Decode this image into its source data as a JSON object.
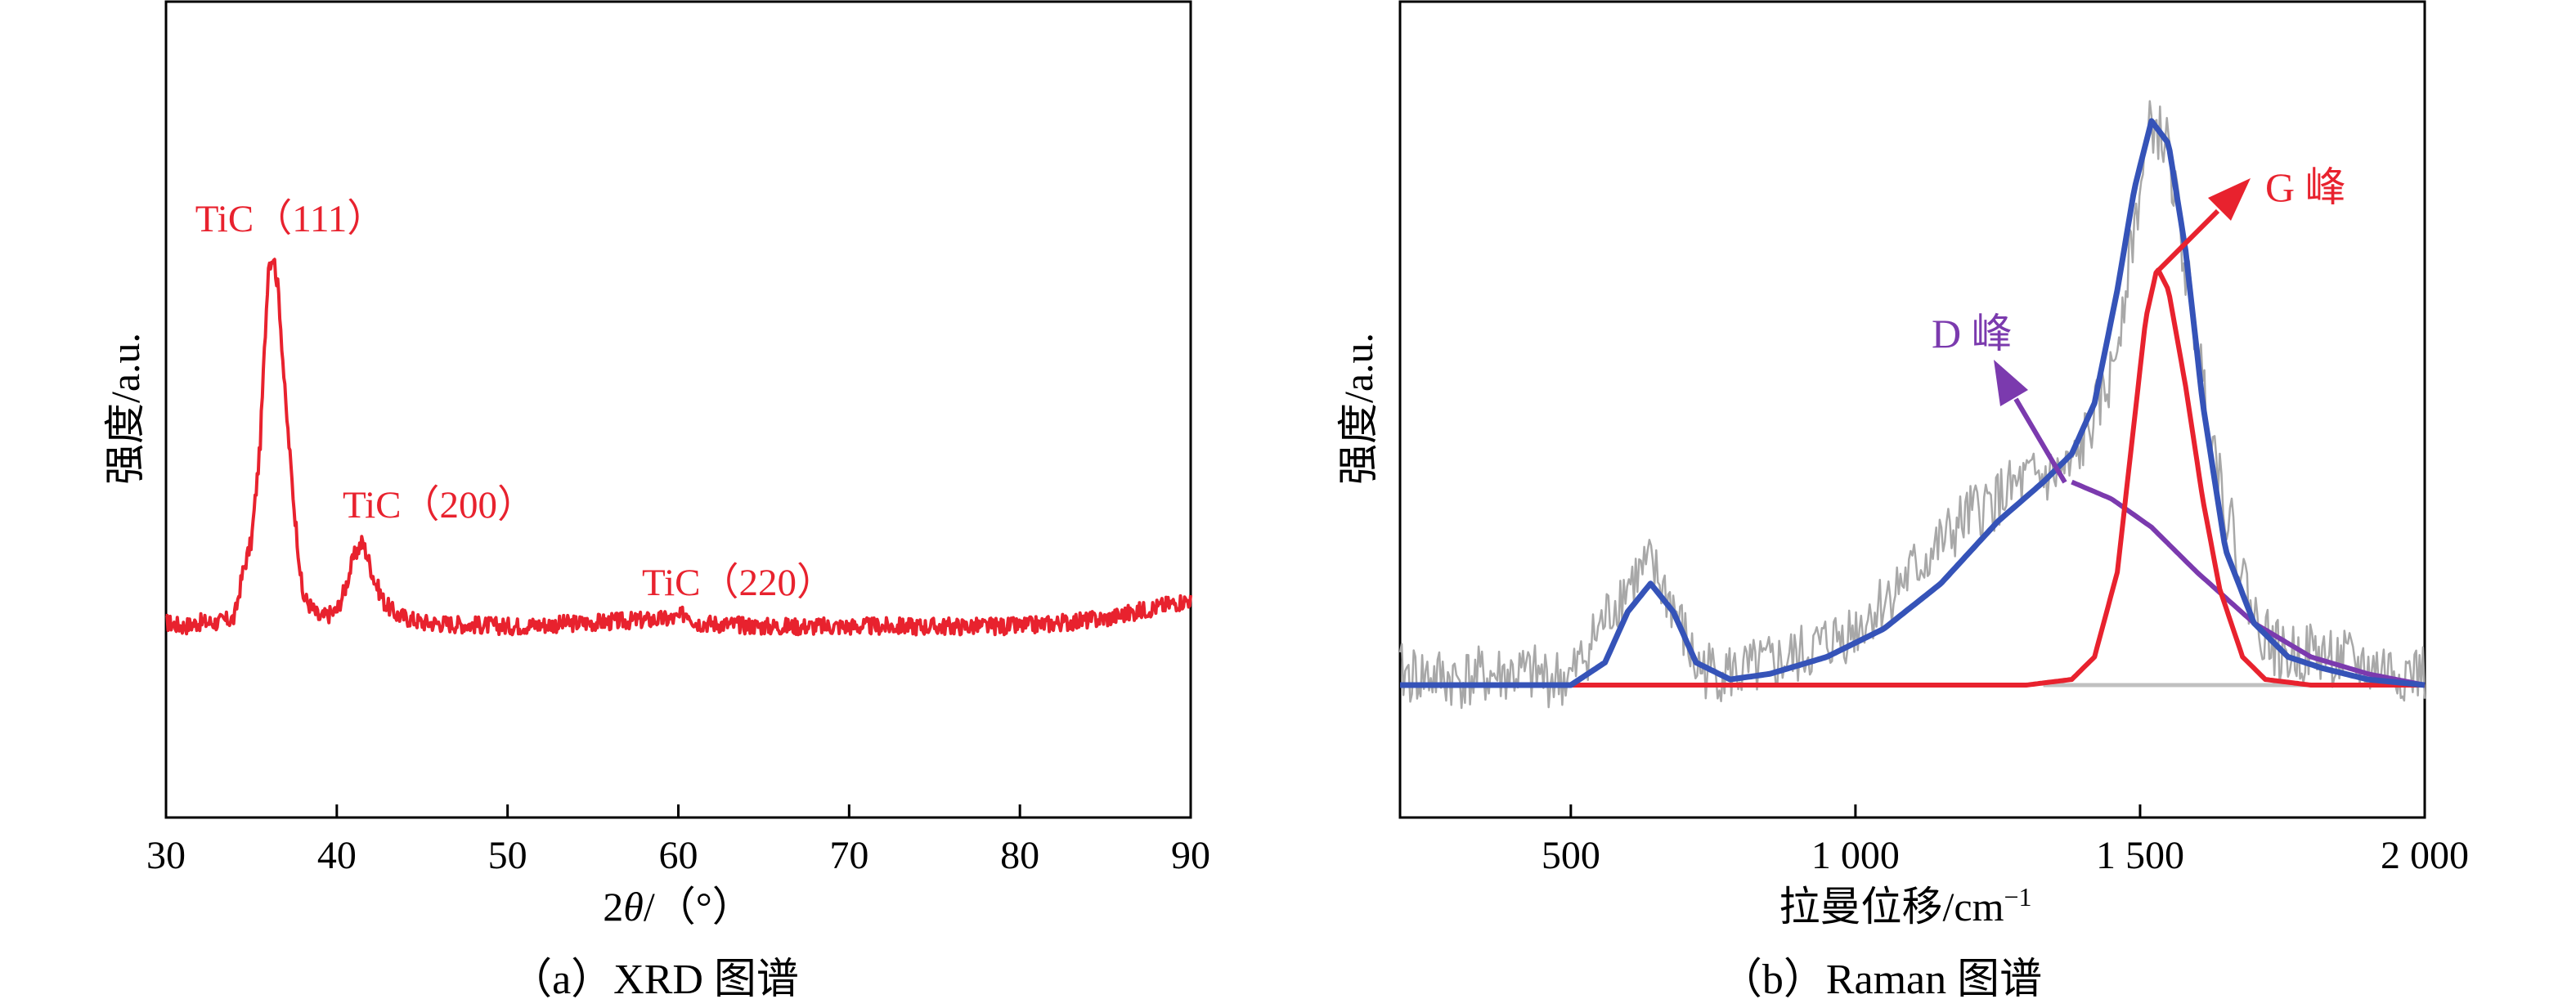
{
  "colors": {
    "xrd_line": "#e8222e",
    "annotation_red": "#e8222e",
    "raman_raw": "#a8a8a8",
    "fit_total": "#3553b8",
    "fit_G": "#e8222e",
    "fit_D": "#7b3aae",
    "axis": "#000000"
  },
  "chart_data": [
    {
      "type": "line",
      "panel_caption": "（a）XRD 图谱",
      "xlabel": "2θ/（°）",
      "ylabel": "强度/a.u.",
      "xlim": [
        30,
        90
      ],
      "x_ticks": [
        30,
        40,
        50,
        60,
        70,
        80,
        90
      ],
      "x_tick_labels": [
        "30",
        "40",
        "50",
        "60",
        "70",
        "80",
        "90"
      ],
      "y_ticks_shown": false,
      "grid": false,
      "annotations": [
        {
          "text": "TiC（111）",
          "x": 36.2
        },
        {
          "text": "TiC（200）",
          "x": 41.7
        },
        {
          "text": "TiC（220）",
          "x": 60.5
        }
      ],
      "series": [
        {
          "color": "#e8222e",
          "x": [
            30,
            31,
            32,
            33,
            34,
            34.5,
            35,
            35.5,
            36,
            36.3,
            36.6,
            37,
            37.5,
            38,
            39,
            40,
            40.5,
            41,
            41.5,
            41.8,
            42.2,
            42.8,
            43.5,
            45,
            50,
            55,
            60,
            60.5,
            61,
            65,
            70,
            75,
            80,
            85,
            88,
            90
          ],
          "y": [
            0.05,
            0.04,
            0.05,
            0.05,
            0.06,
            0.18,
            0.26,
            0.5,
            0.98,
            1.0,
            0.9,
            0.62,
            0.35,
            0.12,
            0.06,
            0.08,
            0.14,
            0.22,
            0.26,
            0.22,
            0.16,
            0.1,
            0.07,
            0.05,
            0.04,
            0.05,
            0.06,
            0.08,
            0.05,
            0.04,
            0.04,
            0.04,
            0.04,
            0.06,
            0.09,
            0.11
          ]
        }
      ]
    },
    {
      "type": "line",
      "panel_caption": "（b）Raman 图谱",
      "xlabel": "拉曼位移/cm⁻¹",
      "ylabel": "强度/a.u.",
      "xlim": [
        200,
        2000
      ],
      "x_ticks": [
        500,
        1000,
        1500,
        2000
      ],
      "x_tick_labels": [
        "500",
        "1 000",
        "1 500",
        "2 000"
      ],
      "y_ticks_shown": false,
      "grid": false,
      "annotations": [
        {
          "text": "G 峰",
          "color": "#e8222e"
        },
        {
          "text": "D 峰",
          "color": "#7b3aae"
        }
      ],
      "series": [
        {
          "role": "raw",
          "color": "#a8a8a8",
          "x": [
            200,
            300,
            400,
            500,
            550,
            600,
            640,
            680,
            720,
            800,
            900,
            1000,
            1100,
            1200,
            1300,
            1380,
            1450,
            1500,
            1520,
            1550,
            1600,
            1650,
            1700,
            1750,
            1800,
            1900,
            2000
          ],
          "y": [
            0.02,
            0.01,
            0.02,
            0.01,
            0.1,
            0.18,
            0.21,
            0.14,
            0.03,
            0.02,
            0.05,
            0.1,
            0.2,
            0.3,
            0.36,
            0.38,
            0.55,
            0.88,
            1.0,
            0.95,
            0.6,
            0.32,
            0.12,
            0.05,
            0.06,
            0.03,
            0.02
          ]
        },
        {
          "role": "total_fit",
          "color": "#3553b8",
          "x": [
            200,
            300,
            400,
            500,
            560,
            600,
            640,
            680,
            720,
            780,
            850,
            950,
            1050,
            1150,
            1250,
            1330,
            1380,
            1420,
            1460,
            1490,
            1520,
            1550,
            1580,
            1610,
            1650,
            1700,
            1760,
            1820,
            1900,
            2000
          ],
          "y": [
            0.0,
            0.0,
            0.0,
            0.0,
            0.04,
            0.13,
            0.18,
            0.13,
            0.04,
            0.01,
            0.02,
            0.05,
            0.1,
            0.18,
            0.29,
            0.36,
            0.41,
            0.5,
            0.7,
            0.88,
            1.0,
            0.96,
            0.77,
            0.5,
            0.24,
            0.11,
            0.05,
            0.03,
            0.01,
            0.0
          ]
        },
        {
          "role": "G_fit",
          "color": "#e8222e",
          "x": [
            200,
            400,
            600,
            800,
            1000,
            1200,
            1300,
            1380,
            1420,
            1460,
            1490,
            1510,
            1530,
            1550,
            1580,
            1610,
            1640,
            1680,
            1720,
            1800,
            2000
          ],
          "y": [
            0,
            0,
            0,
            0,
            0,
            0,
            0,
            0.01,
            0.05,
            0.2,
            0.47,
            0.65,
            0.74,
            0.7,
            0.53,
            0.33,
            0.17,
            0.05,
            0.01,
            0,
            0
          ]
        },
        {
          "role": "D_fit",
          "color": "#7b3aae",
          "x": [
            1380,
            1450,
            1520,
            1600,
            1700,
            1800,
            1900,
            2000
          ],
          "y": [
            0.36,
            0.33,
            0.28,
            0.2,
            0.11,
            0.05,
            0.02,
            0.0
          ]
        },
        {
          "role": "baseline",
          "color": "#c0c0c0",
          "x": [
            1330,
            2000
          ],
          "y": [
            0,
            0
          ]
        }
      ]
    }
  ]
}
